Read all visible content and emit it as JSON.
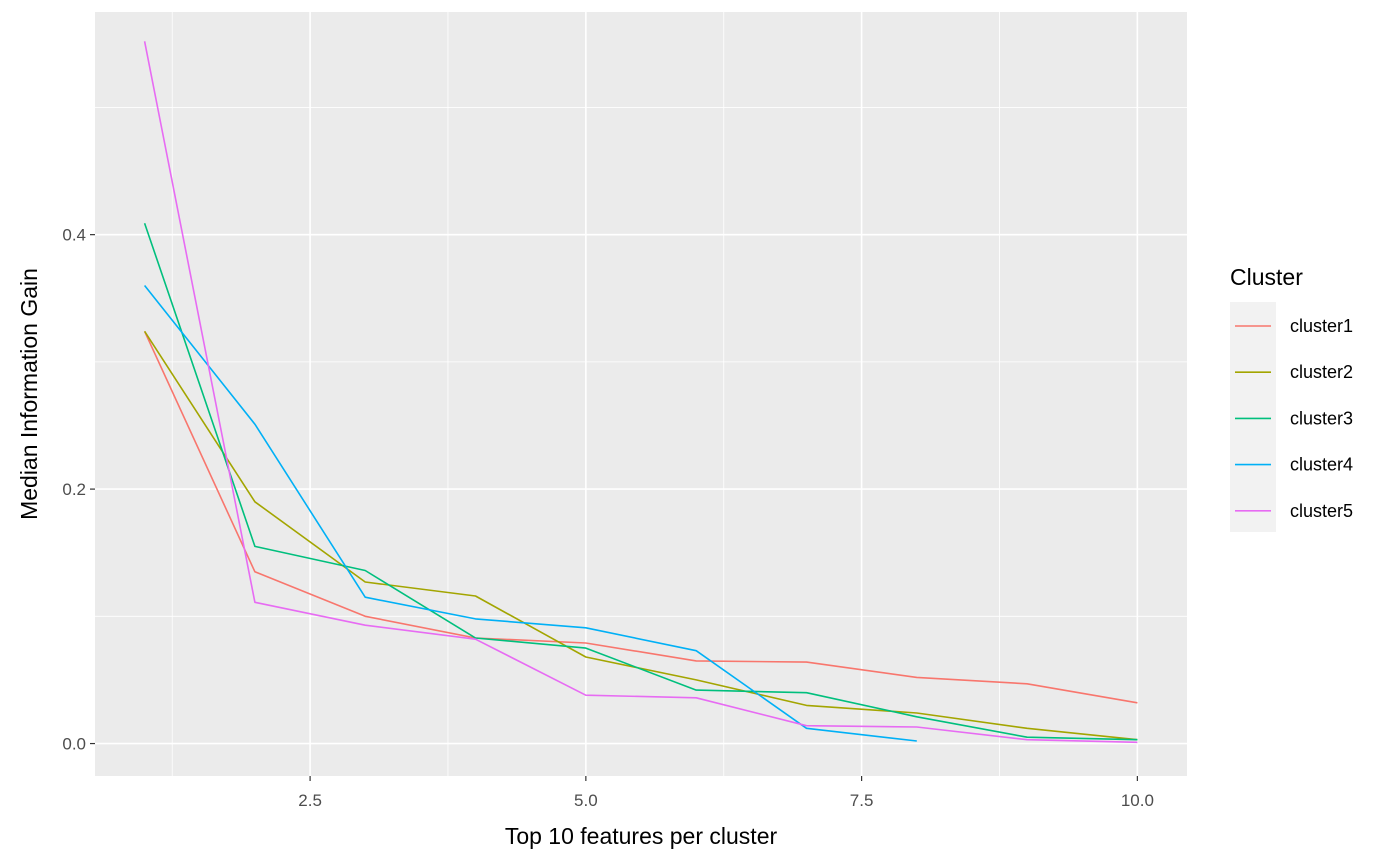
{
  "chart_data": {
    "type": "line",
    "xlabel": "Top 10 features per cluster",
    "ylabel": "Median Information Gain",
    "xlim": [
      0.55,
      10.45
    ],
    "ylim": [
      -0.0255,
      0.575
    ],
    "x_ticks": [
      {
        "value": 2.5,
        "label": "2.5"
      },
      {
        "value": 5.0,
        "label": "5.0"
      },
      {
        "value": 7.5,
        "label": "7.5"
      },
      {
        "value": 10.0,
        "label": "10.0"
      }
    ],
    "y_ticks": [
      {
        "value": 0.0,
        "label": "0.0"
      },
      {
        "value": 0.2,
        "label": "0.2"
      },
      {
        "value": 0.4,
        "label": "0.4"
      }
    ],
    "grid": true,
    "legend": {
      "title": "Cluster",
      "position": "right"
    },
    "series": [
      {
        "name": "cluster1",
        "color": "#F8766D",
        "x": [
          1,
          2,
          3,
          4,
          5,
          6,
          7,
          8,
          9,
          10
        ],
        "y": [
          0.324,
          0.135,
          0.1,
          0.083,
          0.079,
          0.065,
          0.064,
          0.052,
          0.047,
          0.032
        ]
      },
      {
        "name": "cluster2",
        "color": "#A3A500",
        "x": [
          1,
          2,
          3,
          4,
          5,
          6,
          7,
          8,
          9,
          10
        ],
        "y": [
          0.324,
          0.19,
          0.127,
          0.116,
          0.068,
          0.05,
          0.03,
          0.024,
          0.012,
          0.003
        ]
      },
      {
        "name": "cluster3",
        "color": "#00BF7D",
        "x": [
          1,
          2,
          3,
          4,
          5,
          6,
          7,
          8,
          9,
          10
        ],
        "y": [
          0.409,
          0.155,
          0.136,
          0.083,
          0.075,
          0.042,
          0.04,
          0.021,
          0.005,
          0.003
        ]
      },
      {
        "name": "cluster4",
        "color": "#00B0F6",
        "x": [
          1,
          2,
          3,
          4,
          5,
          6,
          7,
          8
        ],
        "y": [
          0.36,
          0.251,
          0.115,
          0.098,
          0.091,
          0.073,
          0.012,
          0.002
        ]
      },
      {
        "name": "cluster5",
        "color": "#E76BF3",
        "x": [
          1,
          2,
          3,
          4,
          5,
          6,
          7,
          8,
          9,
          10
        ],
        "y": [
          0.552,
          0.111,
          0.093,
          0.082,
          0.038,
          0.036,
          0.014,
          0.013,
          0.003,
          0.001
        ]
      }
    ]
  }
}
